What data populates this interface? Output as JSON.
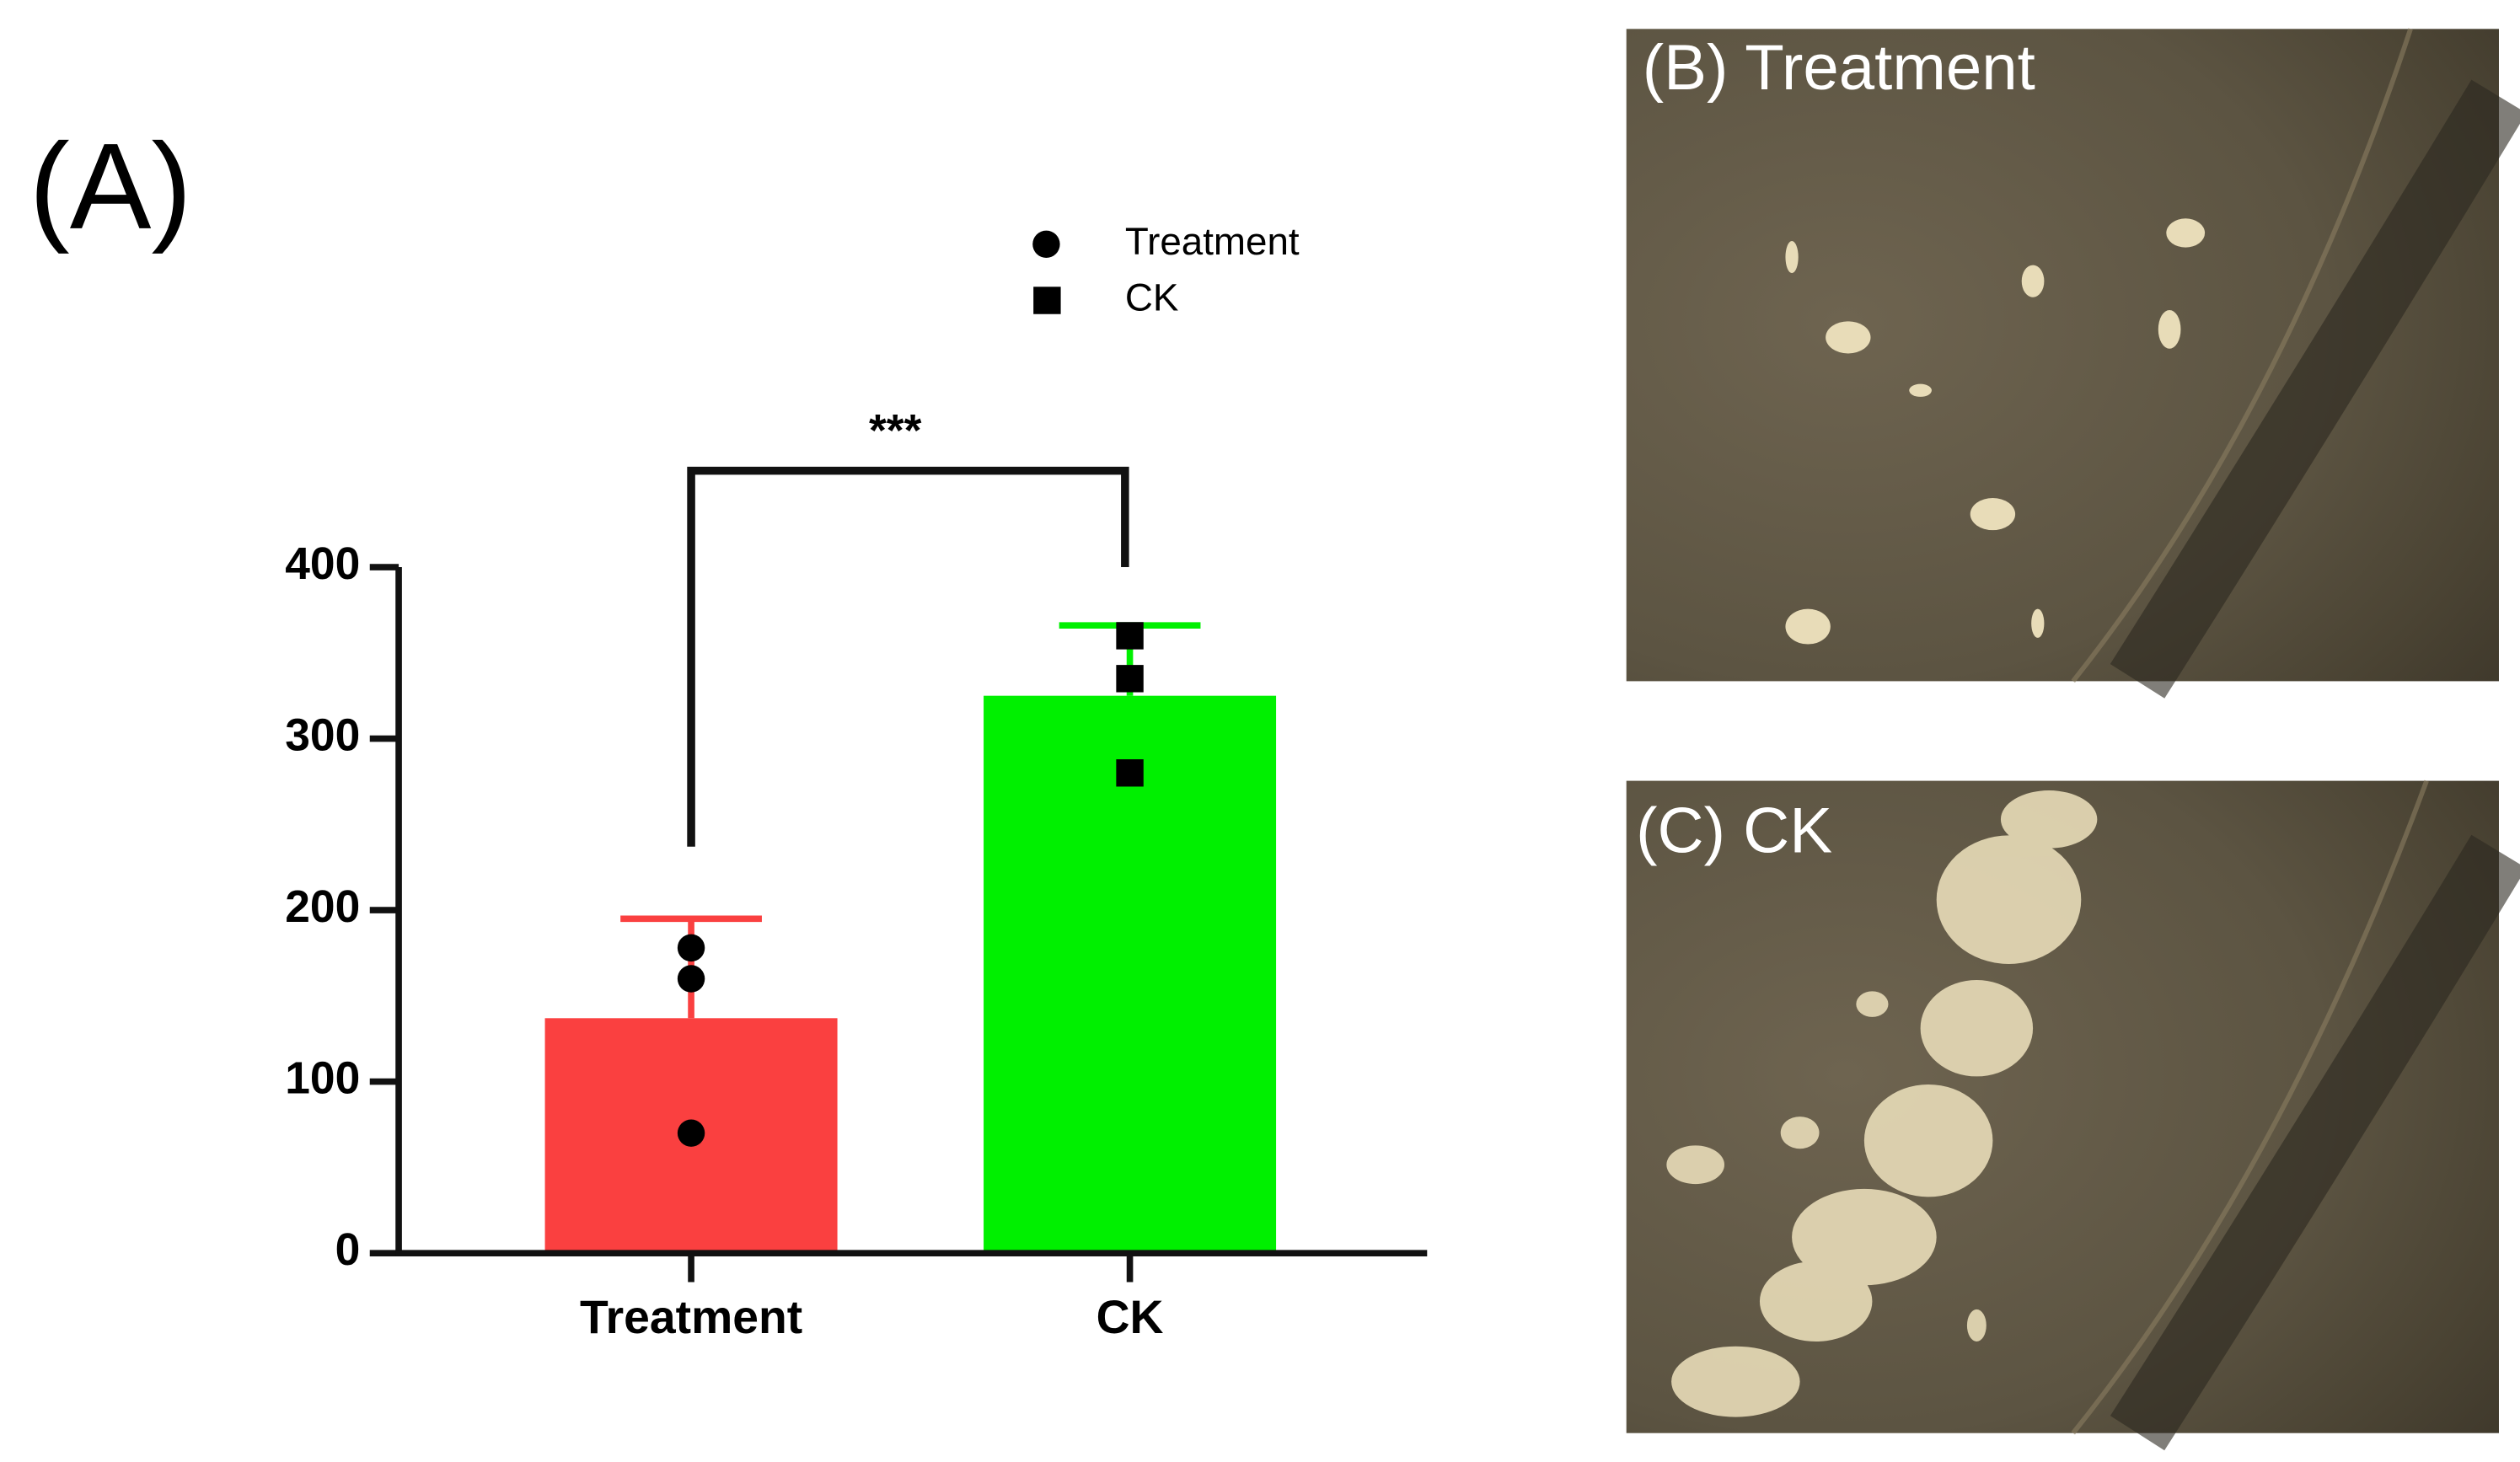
{
  "chart_data": {
    "type": "bar",
    "panel_label": "(A)",
    "categories": [
      "Treatment",
      "CK"
    ],
    "series": [
      {
        "name": "Treatment",
        "color": "#fa4040",
        "marker": "circle",
        "value": 137,
        "error": 58,
        "points": [
          178,
          160,
          70
        ]
      },
      {
        "name": "CK",
        "color": "#00f000",
        "marker": "square",
        "value": 325,
        "error": 41,
        "points": [
          360,
          335,
          280
        ]
      }
    ],
    "annotation": "***",
    "ylim": [
      0,
      400
    ],
    "yticks": [
      0,
      100,
      200,
      300,
      400
    ],
    "legend": "top-right"
  },
  "photos": [
    {
      "label": "(B) Treatment"
    },
    {
      "label": "(C) CK"
    }
  ]
}
